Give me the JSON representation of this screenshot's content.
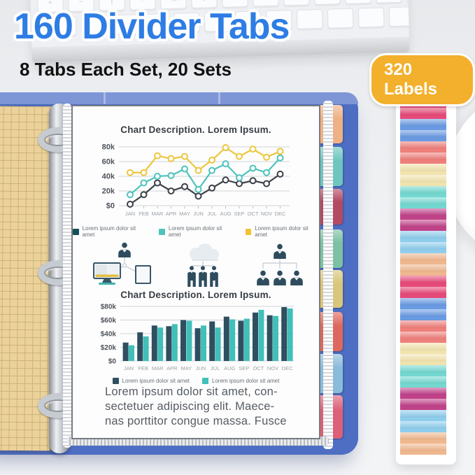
{
  "header": {
    "title": "160 Divider Tabs",
    "subtitle": "8 Tabs Each Set, 20 Sets",
    "badge_label": "320 Labels",
    "title_color": "#2e7de5",
    "badge_color": "#f3b02c"
  },
  "keyboard": {
    "key_glyphs": [
      "+",
      "−",
      "|",
      "·",
      "%",
      "$",
      "#",
      "Ø",
      "|",
      "~",
      "−",
      "+"
    ]
  },
  "chart_data": [
    {
      "type": "line",
      "title": "Chart Description. Lorem Ipsum.",
      "x": [
        "JAN",
        "FEB",
        "MAR",
        "APR",
        "MAY",
        "JUN",
        "JUL",
        "AUG",
        "SEP",
        "OCT",
        "NOV",
        "DEC"
      ],
      "units": "thousands (k)",
      "ylim_k": [
        0,
        80
      ],
      "yticks_k": [
        0,
        20,
        40,
        60,
        80
      ],
      "ytick_labels": [
        "$0",
        "20k",
        "40k",
        "60k",
        "80k"
      ],
      "grid": true,
      "marker": "open-circle",
      "legend_position": "bottom",
      "series": [
        {
          "name": "Lorem ipsum dolor sit amet",
          "swatch": "#14505c",
          "stroke": "#3c4148",
          "values_k": [
            2,
            15,
            31,
            20,
            26,
            13,
            24,
            35,
            30,
            34,
            30,
            43
          ]
        },
        {
          "name": "Lorem ipsum dolor sit amet",
          "swatch": "#4fc3bd",
          "stroke": "#4fc3bd",
          "values_k": [
            15,
            31,
            40,
            41,
            50,
            22,
            48,
            57,
            38,
            51,
            45,
            65
          ]
        },
        {
          "name": "Lorem ipsum dolor sit amet",
          "swatch": "#f2c233",
          "stroke": "#edc63d",
          "values_k": [
            45,
            45,
            68,
            64,
            67,
            48,
            62,
            79,
            67,
            77,
            66,
            74
          ]
        }
      ]
    },
    {
      "type": "bar",
      "title": "Chart Description. Lorem Ipsum.",
      "categories": [
        "JAN",
        "FEB",
        "MAR",
        "APR",
        "MAY",
        "JUN",
        "JUL",
        "AUG",
        "SEP",
        "OCT",
        "NOV",
        "DEC"
      ],
      "units": "thousands (k)",
      "ylim_k": [
        0,
        80
      ],
      "yticks_k": [
        0,
        20,
        40,
        60,
        80
      ],
      "ytick_labels": [
        "$0",
        "$20k",
        "$40k",
        "$60k",
        "$80k"
      ],
      "grid": true,
      "legend_position": "bottom",
      "series": [
        {
          "name": "Lorem ipsum dolor sit amet",
          "color": "#2f4f60",
          "values_k": [
            27,
            42,
            52,
            51,
            60,
            48,
            58,
            65,
            59,
            71,
            67,
            79
          ]
        },
        {
          "name": "Lorem ipsum dolor sit amet",
          "color": "#41bfb9",
          "values_k": [
            23,
            36,
            49,
            54,
            59,
            52,
            49,
            61,
            62,
            75,
            66,
            77
          ]
        }
      ]
    }
  ],
  "infographic_icons": [
    "person-workstation",
    "cloud-team",
    "org-chart"
  ],
  "document_text": {
    "paragraph_lines": [
      "Lorem ipsum dolor sit amet, con-",
      "sectetuer adipiscing elit. Maece-",
      "nas porttitor congue massa. Fusce"
    ]
  },
  "divider_tabs": {
    "edge_tab_colors": [
      "#eeb185",
      "#6ec6bf",
      "#b34a63",
      "#7cc1a4",
      "#d8c67c",
      "#dd685e",
      "#8abbdb",
      "#dc6077"
    ]
  },
  "label_strip": {
    "colors": [
      "#e64a79",
      "#699ae2",
      "#ee7f7b",
      "#f1e3ae",
      "#73d7d0",
      "#c04289",
      "#8fcdec",
      "#efb78e"
    ],
    "repeats": 2
  }
}
